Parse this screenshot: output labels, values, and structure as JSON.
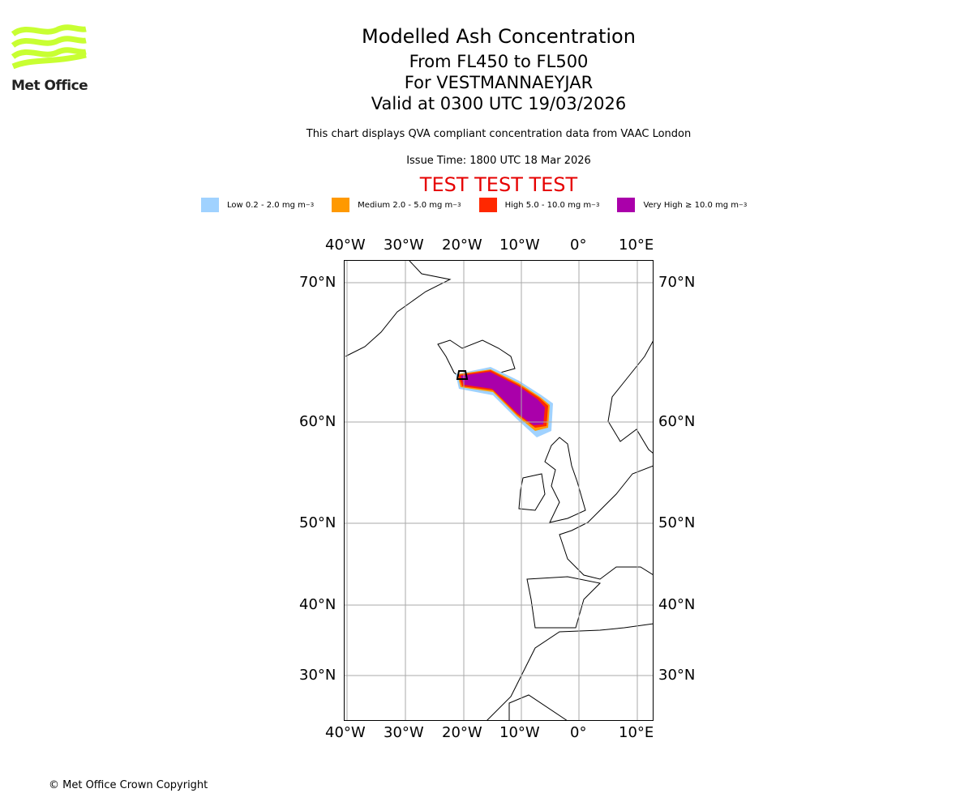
{
  "logo": {
    "text": "Met Office",
    "color": "#c8ff32"
  },
  "header": {
    "title": "Modelled Ash Concentration",
    "levels": "From FL450 to FL500",
    "volcano": "For VESTMANNAEYJAR",
    "valid": "Valid at 0300 UTC 19/03/2026",
    "subtitle": "This chart displays QVA compliant concentration data from VAAC London",
    "issue_time": "Issue Time: 1800 UTC 18 Mar 2026",
    "test_banner": "TEST TEST TEST"
  },
  "legend": [
    {
      "label": "Low 0.2 - 2.0 mg m",
      "sup": "−3",
      "color": "#a0d2ff"
    },
    {
      "label": "Medium 2.0 - 5.0 mg m",
      "sup": "−3",
      "color": "#ff9900"
    },
    {
      "label": "High 5.0 - 10.0 mg m",
      "sup": "−3",
      "color": "#ff2800"
    },
    {
      "label": "Very High ≥ 10.0 mg m",
      "sup": "−3",
      "color": "#aa00aa"
    }
  ],
  "map": {
    "lon_labels": [
      "40°W",
      "30°W",
      "20°W",
      "10°W",
      "0°",
      "10°E"
    ],
    "lat_labels": [
      "70°N",
      "60°N",
      "50°N",
      "40°N",
      "30°N"
    ]
  },
  "footer": {
    "copyright": "© Met Office Crown Copyright"
  }
}
